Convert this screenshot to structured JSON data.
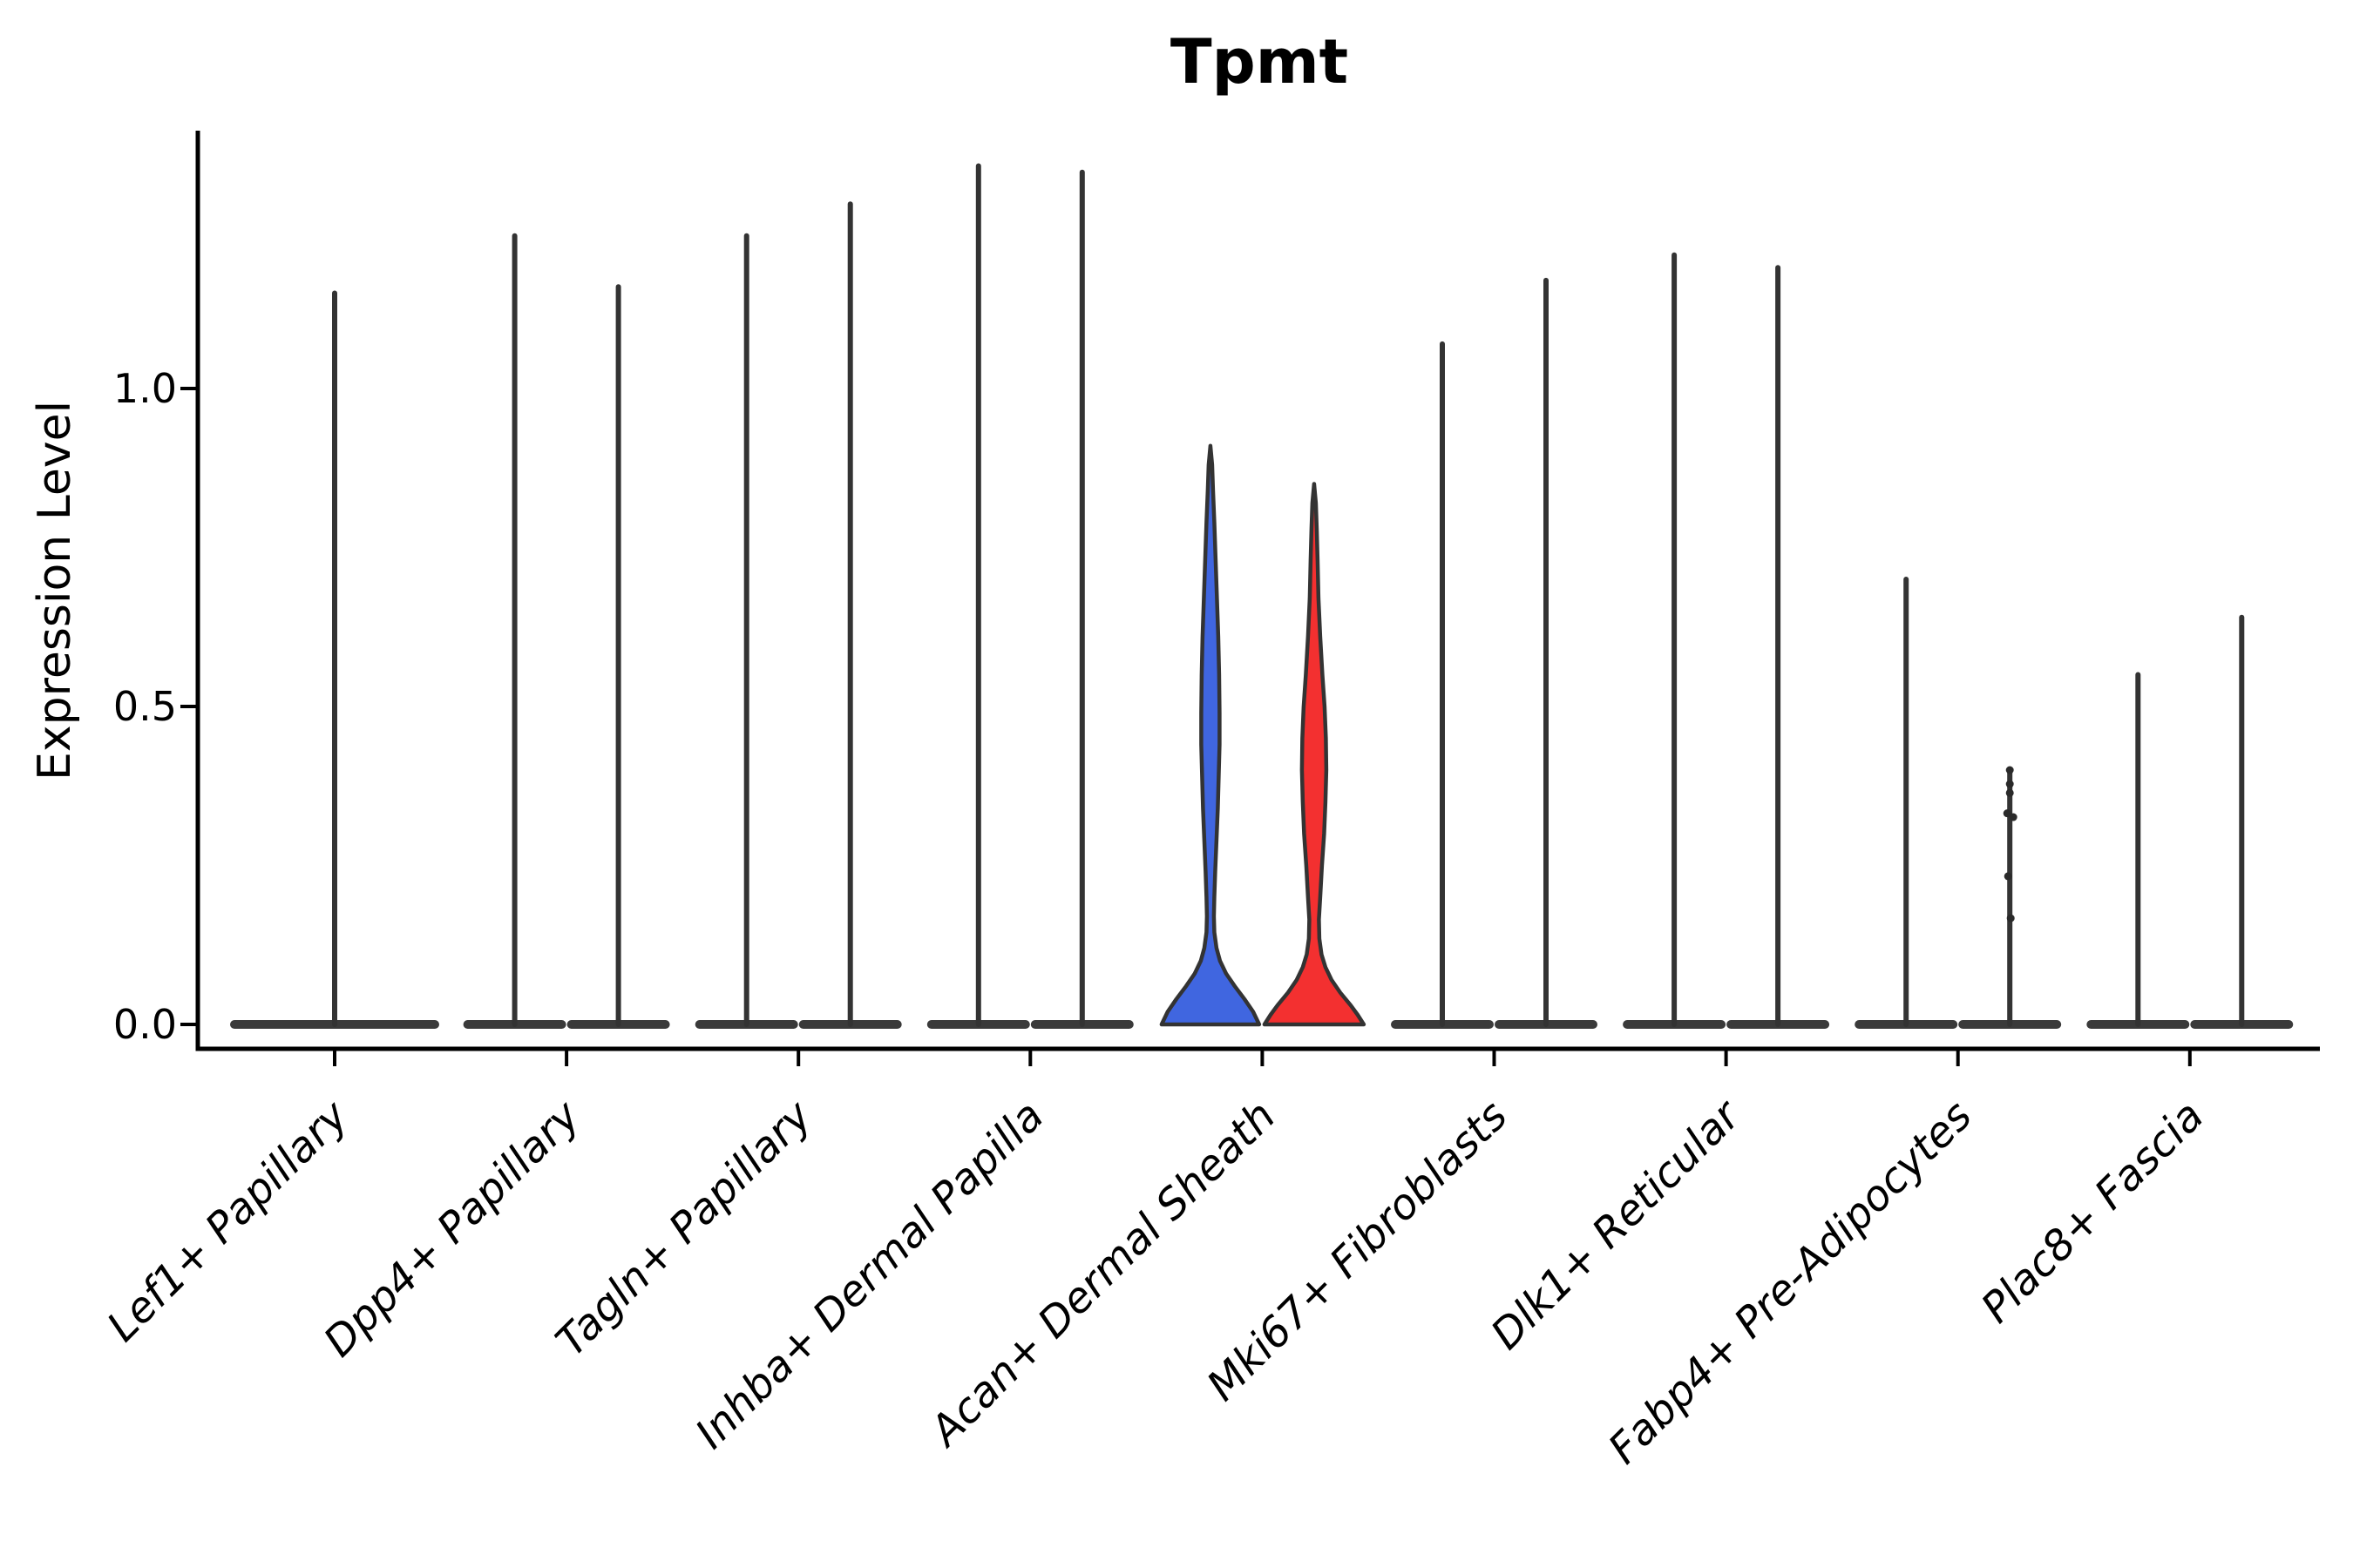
{
  "chart_data": {
    "type": "violin",
    "title": "Tpmt",
    "ylabel": "Expression Level",
    "xlabel": "",
    "grid": false,
    "legend": null,
    "ylim": [
      -0.04,
      1.45
    ],
    "yticks": [
      "0.0",
      "0.5",
      "1.0"
    ],
    "ytick_values": [
      0.0,
      0.5,
      1.0
    ],
    "categories": [
      "Lef1+ Papillary",
      "Dpp4+ Papillary",
      "Tagln+ Papillary",
      "Inhba+ Dermal Papilla",
      "Acan+ Dermal Sheath",
      "Mki67+ Fibroblasts",
      "Dlk1+ Reticular",
      "Fabp4+ Pre-Adipocytes",
      "Plac8+ Fascia"
    ],
    "colors": {
      "outline": "#333333",
      "baseline_fill": "#3a3a3a",
      "point_fill": "#2a2a2a",
      "blue_fill": "#4066E0",
      "red_fill": "#F33030",
      "background": "#ffffff"
    },
    "violins": [
      {
        "category_index": 0,
        "category": "Lef1+ Papillary",
        "position": "center",
        "max": 1.15,
        "fill": null
      },
      {
        "category_index": 1,
        "category": "Dpp4+ Papillary",
        "position": "left",
        "max": 1.24,
        "fill": null
      },
      {
        "category_index": 1,
        "category": "Dpp4+ Papillary",
        "position": "right",
        "max": 1.16,
        "fill": null
      },
      {
        "category_index": 2,
        "category": "Tagln+ Papillary",
        "position": "left",
        "max": 1.24,
        "fill": null
      },
      {
        "category_index": 2,
        "category": "Tagln+ Papillary",
        "position": "right",
        "max": 1.29,
        "fill": null
      },
      {
        "category_index": 3,
        "category": "Inhba+ Dermal Papilla",
        "position": "left",
        "max": 1.35,
        "fill": null
      },
      {
        "category_index": 3,
        "category": "Inhba+ Dermal Papilla",
        "position": "right",
        "max": 1.34,
        "fill": null
      },
      {
        "category_index": 4,
        "category": "Acan+ Dermal Sheath",
        "position": "left",
        "max": 0.91,
        "fill": "#4066E0",
        "profile": [
          [
            0.91,
            0
          ],
          [
            0.88,
            2
          ],
          [
            0.84,
            3
          ],
          [
            0.79,
            4.5
          ],
          [
            0.73,
            6
          ],
          [
            0.67,
            7.5
          ],
          [
            0.61,
            9
          ],
          [
            0.55,
            10
          ],
          [
            0.49,
            10.5
          ],
          [
            0.44,
            10.5
          ],
          [
            0.39,
            9.5
          ],
          [
            0.34,
            8.5
          ],
          [
            0.29,
            7
          ],
          [
            0.24,
            5.5
          ],
          [
            0.2,
            4.5
          ],
          [
            0.17,
            4
          ],
          [
            0.145,
            4.5
          ],
          [
            0.12,
            7
          ],
          [
            0.1,
            11
          ],
          [
            0.08,
            18
          ],
          [
            0.06,
            28
          ],
          [
            0.04,
            39
          ],
          [
            0.02,
            49
          ],
          [
            0.0,
            56
          ]
        ]
      },
      {
        "category_index": 4,
        "category": "Acan+ Dermal Sheath",
        "position": "right",
        "max": 0.85,
        "fill": "#F33030",
        "profile": [
          [
            0.85,
            0
          ],
          [
            0.82,
            2
          ],
          [
            0.78,
            3
          ],
          [
            0.73,
            4
          ],
          [
            0.67,
            5
          ],
          [
            0.61,
            7
          ],
          [
            0.55,
            9.5
          ],
          [
            0.5,
            12
          ],
          [
            0.45,
            13.5
          ],
          [
            0.4,
            14
          ],
          [
            0.35,
            13
          ],
          [
            0.3,
            11.5
          ],
          [
            0.25,
            9
          ],
          [
            0.2,
            7
          ],
          [
            0.165,
            5.5
          ],
          [
            0.135,
            6
          ],
          [
            0.11,
            8.5
          ],
          [
            0.09,
            13
          ],
          [
            0.07,
            20
          ],
          [
            0.05,
            30
          ],
          [
            0.03,
            42
          ],
          [
            0.015,
            50
          ],
          [
            0.0,
            57
          ]
        ]
      },
      {
        "category_index": 5,
        "category": "Mki67+ Fibroblasts",
        "position": "left",
        "max": 1.07,
        "fill": null
      },
      {
        "category_index": 5,
        "category": "Mki67+ Fibroblasts",
        "position": "right",
        "max": 1.17,
        "fill": null
      },
      {
        "category_index": 6,
        "category": "Dlk1+ Reticular",
        "position": "left",
        "max": 1.21,
        "fill": null
      },
      {
        "category_index": 6,
        "category": "Dlk1+ Reticular",
        "position": "right",
        "max": 1.19,
        "fill": null
      },
      {
        "category_index": 7,
        "category": "Fabp4+ Pre-Adipocytes",
        "position": "left",
        "max": 0.7,
        "fill": null
      },
      {
        "category_index": 7,
        "category": "Fabp4+ Pre-Adipocytes",
        "position": "right",
        "max": 0.4,
        "fill": null,
        "points": [
          [
            0.4,
            0
          ],
          [
            0.378,
            0
          ],
          [
            0.364,
            0
          ],
          [
            0.332,
            -3
          ],
          [
            0.326,
            4
          ],
          [
            0.233,
            -2
          ],
          [
            0.167,
            1
          ]
        ]
      },
      {
        "category_index": 8,
        "category": "Plac8+ Fascia",
        "position": "left",
        "max": 0.55,
        "fill": null
      },
      {
        "category_index": 8,
        "category": "Plac8+ Fascia",
        "position": "right",
        "max": 0.64,
        "fill": null
      }
    ]
  }
}
